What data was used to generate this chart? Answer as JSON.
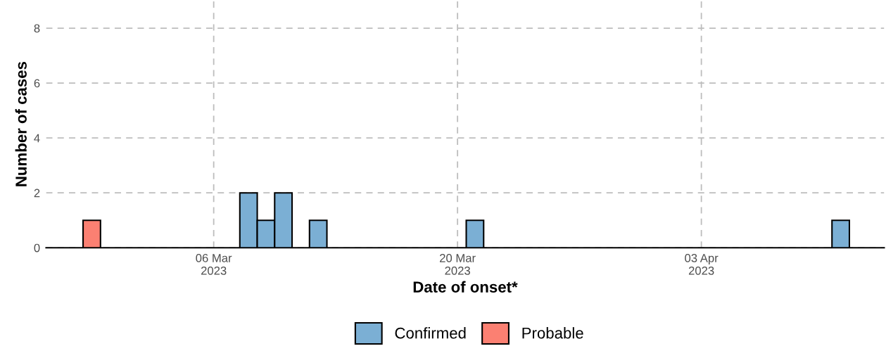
{
  "chart_data": {
    "type": "bar",
    "xlabel": "Date of onset*",
    "ylabel": "Number of cases",
    "series": [
      {
        "name": "Confirmed",
        "color": "#7bafd4",
        "x": [
          "2023-03-08",
          "2023-03-09",
          "2023-03-10",
          "2023-03-12",
          "2023-03-21",
          "2023-04-11"
        ],
        "values": [
          2,
          1,
          2,
          1,
          1,
          1
        ]
      },
      {
        "name": "Probable",
        "color": "#fb8072",
        "x": [
          "2023-02-27"
        ],
        "values": [
          1
        ]
      }
    ],
    "xlim": [
      "2023-02-24T09:00",
      "2023-04-13T12:00"
    ],
    "xticks": [
      {
        "value": "2023-03-06",
        "label": "06 Mar\n2023"
      },
      {
        "value": "2023-03-20",
        "label": "20 Mar\n2023"
      },
      {
        "value": "2023-04-03",
        "label": "03 Apr\n2023"
      }
    ],
    "ylim": [
      0,
      9
    ],
    "yticks": [
      0,
      2,
      4,
      6,
      8
    ],
    "grid": true,
    "legend": "bottom",
    "line_style": "dashed"
  }
}
